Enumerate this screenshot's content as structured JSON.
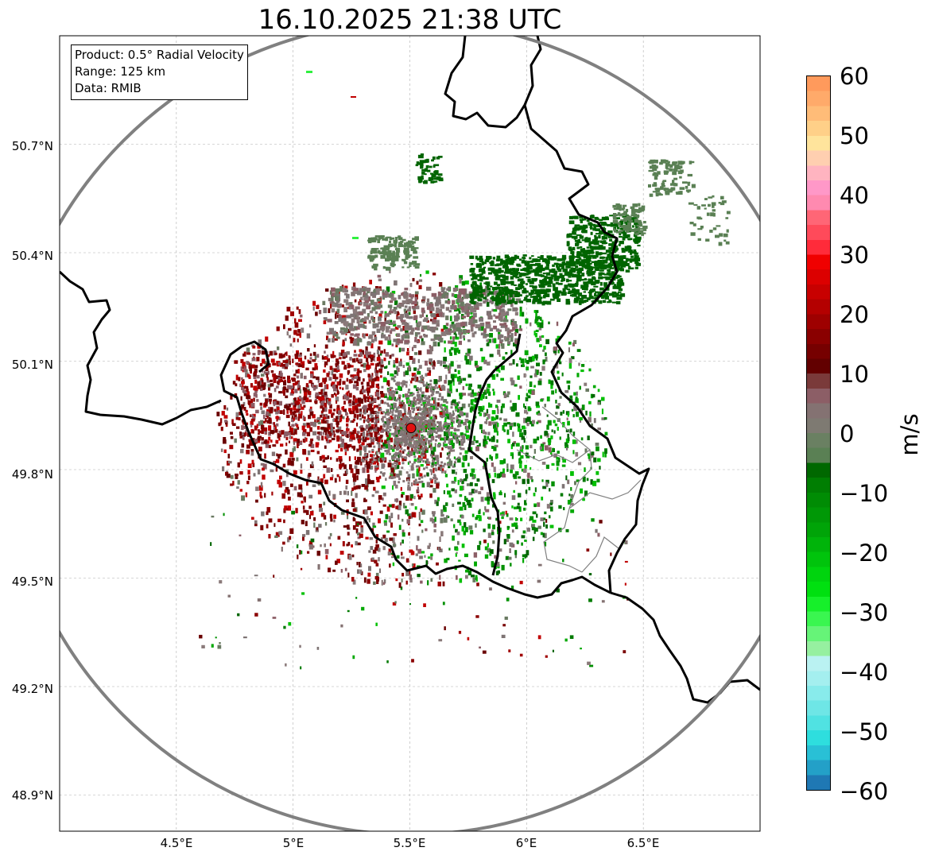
{
  "title": "16.10.2025 21:38 UTC",
  "info_box": {
    "product": "Product: 0.5° Radial Velocity",
    "range": "Range: 125 km",
    "source": "Data: RMIB"
  },
  "axes": {
    "lat_ticks": [
      "50.7°N",
      "50.4°N",
      "50.1°N",
      "49.8°N",
      "49.5°N",
      "49.2°N",
      "48.9°N"
    ],
    "lon_ticks": [
      "4.5°E",
      "5°E",
      "5.5°E",
      "6°E",
      "6.5°E"
    ]
  },
  "map": {
    "extent": {
      "lon_min": 4.0,
      "lon_max": 7.0,
      "lat_min": 48.8,
      "lat_max": 51.0
    },
    "radar_site": {
      "lon": 5.505,
      "lat": 49.915
    },
    "range_km": 125,
    "colors": {
      "range_ring": "#808080",
      "borders": "#000000",
      "admin_lines": "#808080",
      "radar_marker": "#e01010",
      "grid": "#b0b0b0"
    }
  },
  "colorbar": {
    "unit": "m/s",
    "min": -60,
    "max": 60,
    "tick_labels": [
      "60",
      "50",
      "40",
      "30",
      "20",
      "10",
      "0",
      "−10",
      "−20",
      "−30",
      "−40",
      "−50",
      "−60"
    ],
    "scale_colors": [
      "#1f78b4",
      "#23a0c8",
      "#29c0d6",
      "#2edede",
      "#50e2e2",
      "#6ee6e6",
      "#88ebeb",
      "#a4efef",
      "#baf2f2",
      "#96f0a0",
      "#66f478",
      "#3af650",
      "#16f02a",
      "#00e010",
      "#00d40e",
      "#00c40c",
      "#00b40a",
      "#00a408",
      "#009806",
      "#008c04",
      "#007e02",
      "#006800",
      "#5a8054",
      "#6a8062",
      "#7e7a72",
      "#847272",
      "#8c5e66",
      "#7a3a3a",
      "#620000",
      "#760000",
      "#8a0000",
      "#9e0000",
      "#b40000",
      "#c80000",
      "#dc0000",
      "#f00000",
      "#ff2b3a",
      "#ff4a5a",
      "#ff6676",
      "#ff8ab0",
      "#ff98c8",
      "#ffb4c0",
      "#ffcfb0",
      "#ffe49c",
      "#ffd088",
      "#ffbc78",
      "#ffaa6a",
      "#ff9a5c"
    ]
  }
}
